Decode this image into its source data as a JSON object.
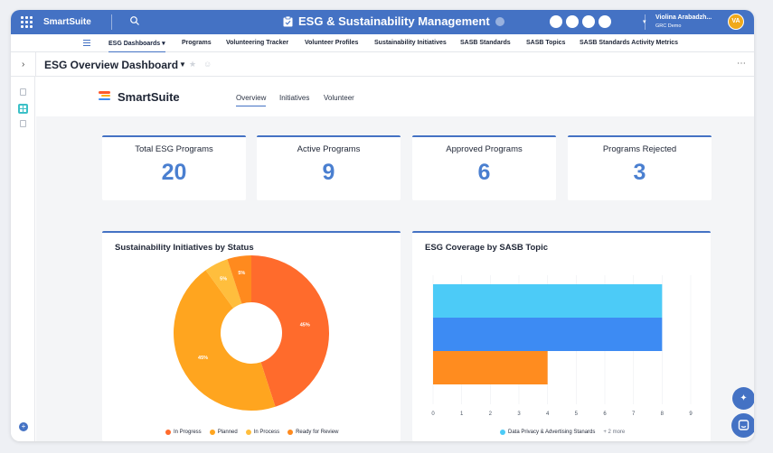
{
  "topbar": {
    "brand": "SmartSuite",
    "app_title": "ESG & Sustainability Management",
    "user_name": "Violina Arabadzh...",
    "user_org": "GRC Demo",
    "avatar_initials": "VA",
    "color": "#4472c4"
  },
  "nav": {
    "items": [
      {
        "label": "ESG Dashboards ▾"
      },
      {
        "label": "Programs"
      },
      {
        "label": "Volunteering Tracker"
      },
      {
        "label": "Volunteer Profiles"
      },
      {
        "label": "Sustainability Initiatives"
      },
      {
        "label": "SASB Standards"
      },
      {
        "label": "SASB Topics"
      },
      {
        "label": "SASB Standards Activity Metrics"
      }
    ]
  },
  "page": {
    "title": "ESG Overview Dashboard"
  },
  "dashboard": {
    "brand": "SmartSuite",
    "tabs": [
      {
        "label": "Overview"
      },
      {
        "label": "Initiatives"
      },
      {
        "label": "Volunteer"
      }
    ],
    "kpis": [
      {
        "label": "Total ESG Programs",
        "value": "20"
      },
      {
        "label": "Active Programs",
        "value": "9"
      },
      {
        "label": "Approved Programs",
        "value": "6"
      },
      {
        "label": "Programs Rejected",
        "value": "3"
      }
    ]
  },
  "chart_data": [
    {
      "type": "pie",
      "title": "Sustainability Initiatives by Status",
      "categories": [
        "In Progress",
        "Planned",
        "In Process",
        "Ready for Review"
      ],
      "values": [
        45,
        45,
        5,
        5
      ],
      "colors": [
        "#ff6b2c",
        "#ffa51f",
        "#ffbe3d",
        "#ff8a1e"
      ],
      "legend": "bottom"
    },
    {
      "type": "bar",
      "orientation": "horizontal",
      "title": "ESG Coverage by SASB Topic",
      "categories": [
        "Data Privacy & Advertising Stanards",
        "",
        ""
      ],
      "values": [
        8,
        8,
        4
      ],
      "colors": [
        "#4ccbf7",
        "#3d8bf3",
        "#ff8c1f"
      ],
      "xlim": [
        0,
        9
      ],
      "xticks": [
        "0",
        "1",
        "2",
        "3",
        "4",
        "5",
        "6",
        "7",
        "8",
        "9"
      ],
      "legend_label": "Data Privacy & Advertising Stanards",
      "legend_more": "+ 2 more",
      "legend": "bottom"
    }
  ]
}
